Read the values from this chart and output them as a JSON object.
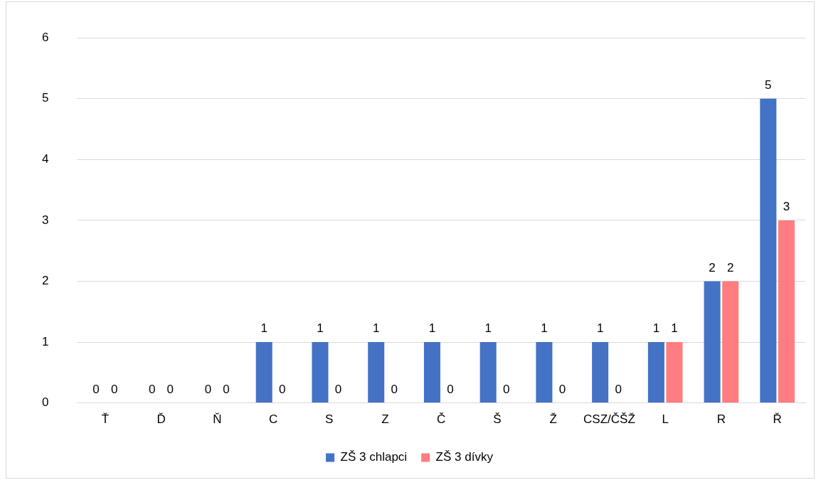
{
  "chart_data": {
    "type": "bar",
    "categories": [
      "Ť",
      "Ď",
      "Ň",
      "C",
      "S",
      "Z",
      "Č",
      "Š",
      "Ž",
      "CSZ/ČŠŽ",
      "L",
      "R",
      "Ř"
    ],
    "series": [
      {
        "name": "ZŠ 3 chlapci",
        "color": "#4472c4",
        "values": [
          0,
          0,
          0,
          1,
          1,
          1,
          1,
          1,
          1,
          1,
          1,
          2,
          5
        ]
      },
      {
        "name": "ZŠ 3 dívky",
        "color": "#ff7c80",
        "values": [
          0,
          0,
          0,
          0,
          0,
          0,
          0,
          0,
          0,
          0,
          1,
          2,
          3
        ]
      }
    ],
    "ylim": [
      0,
      6
    ],
    "yticks": [
      0,
      1,
      2,
      3,
      4,
      5,
      6
    ],
    "grid": "y",
    "legend": "bottom",
    "data_labels": true
  }
}
